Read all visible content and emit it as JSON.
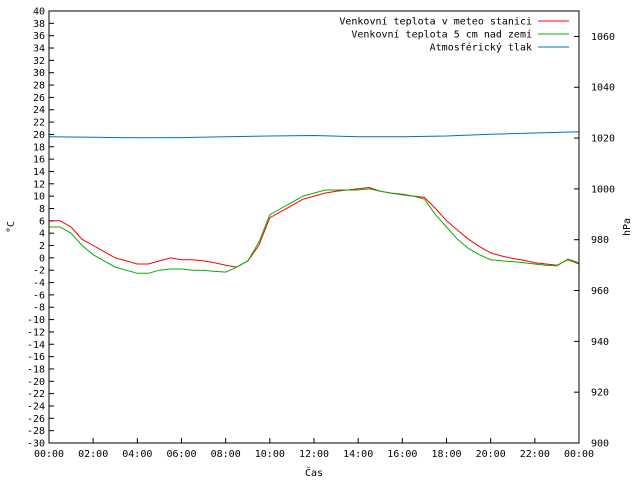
{
  "chart_data": {
    "type": "line",
    "title": "",
    "xlabel": "Čas",
    "ylabel": "°C",
    "y2label": "hPa",
    "xlim": [
      0,
      24
    ],
    "ylim": [
      -30,
      40
    ],
    "y2lim": [
      900,
      1070
    ],
    "x_ticks": [
      "00:00",
      "02:00",
      "04:00",
      "06:00",
      "08:00",
      "10:00",
      "12:00",
      "14:00",
      "16:00",
      "18:00",
      "20:00",
      "22:00",
      "00:00"
    ],
    "y_ticks": [
      40,
      38,
      36,
      34,
      32,
      30,
      28,
      26,
      24,
      22,
      20,
      18,
      16,
      14,
      12,
      10,
      8,
      6,
      4,
      2,
      0,
      -2,
      -4,
      -6,
      -8,
      -10,
      -12,
      -14,
      -16,
      -18,
      -20,
      -22,
      -24,
      -26,
      -28,
      -30
    ],
    "y2_ticks": [
      1060,
      1040,
      1020,
      1000,
      980,
      960,
      940,
      920,
      900
    ],
    "grid": false,
    "legend_position": "top-right",
    "series": [
      {
        "name": "Venkovní teplota v meteo stanici",
        "axis": "left",
        "color": "#ff0000",
        "x": [
          0,
          0.5,
          1,
          1.5,
          2,
          2.5,
          3,
          3.5,
          4,
          4.5,
          5,
          5.5,
          6,
          6.5,
          7,
          7.5,
          8,
          8.5,
          9,
          9.5,
          10,
          10.5,
          11,
          11.5,
          12,
          12.5,
          13,
          13.5,
          14,
          14.5,
          15,
          15.5,
          16,
          16.5,
          17,
          17.5,
          18,
          18.5,
          19,
          19.5,
          20,
          20.5,
          21,
          21.5,
          22,
          22.5,
          23,
          23.5,
          24
        ],
        "y": [
          6,
          6,
          5,
          3,
          2,
          1,
          0,
          -0.5,
          -1,
          -1,
          -0.5,
          0,
          -0.3,
          -0.3,
          -0.5,
          -0.8,
          -1.2,
          -1.5,
          -0.5,
          2,
          6.5,
          7.5,
          8.5,
          9.5,
          10,
          10.5,
          10.8,
          11,
          11.2,
          11.4,
          10.8,
          10.5,
          10.3,
          10,
          9.8,
          8,
          6,
          4.5,
          3,
          1.8,
          0.8,
          0.3,
          -0.1,
          -0.4,
          -0.8,
          -1,
          -1.2,
          -0.3,
          -1
        ]
      },
      {
        "name": "Venkovní teplota 5 cm nad zemí",
        "axis": "left",
        "color": "#00b000",
        "x": [
          0,
          0.5,
          1,
          1.5,
          2,
          2.5,
          3,
          3.5,
          4,
          4.5,
          5,
          5.5,
          6,
          6.5,
          7,
          7.5,
          8,
          8.5,
          9,
          9.5,
          10,
          10.5,
          11,
          11.5,
          12,
          12.5,
          13,
          13.5,
          14,
          14.5,
          15,
          15.5,
          16,
          16.5,
          17,
          17.5,
          18,
          18.5,
          19,
          19.5,
          20,
          20.5,
          21,
          21.5,
          22,
          22.5,
          23,
          23.5,
          24
        ],
        "y": [
          5,
          5,
          4,
          2,
          0.5,
          -0.5,
          -1.5,
          -2,
          -2.5,
          -2.5,
          -2,
          -1.8,
          -1.8,
          -2,
          -2,
          -2.2,
          -2.3,
          -1.5,
          -0.5,
          2.5,
          7,
          8,
          9,
          10,
          10.5,
          11,
          11,
          11,
          11,
          11.2,
          10.8,
          10.5,
          10.2,
          10,
          9.5,
          7,
          5,
          3,
          1.5,
          0.5,
          -0.3,
          -0.5,
          -0.6,
          -0.8,
          -1,
          -1.2,
          -1.3,
          -0.2,
          -0.8
        ]
      },
      {
        "name": "Atmosférický tlak",
        "axis": "right",
        "color": "#0070c0",
        "x": [
          0,
          2,
          4,
          6,
          8,
          10,
          12,
          14,
          16,
          18,
          20,
          22,
          24
        ],
        "y": [
          1020.5,
          1020.3,
          1020.1,
          1020.2,
          1020.5,
          1020.8,
          1021,
          1020.5,
          1020.5,
          1020.8,
          1021.5,
          1022,
          1022.5
        ]
      }
    ]
  }
}
